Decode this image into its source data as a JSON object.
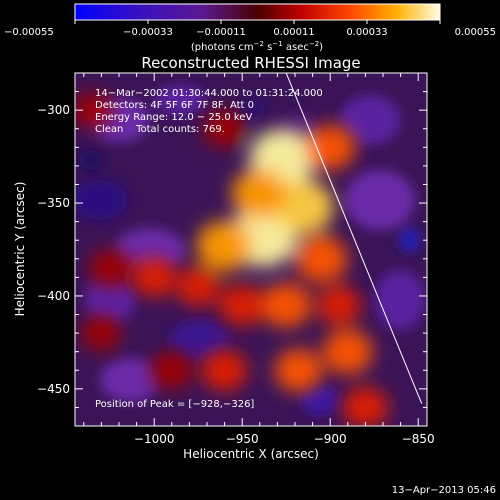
{
  "chart_data": {
    "type": "heatmap",
    "title": "Reconstructed RHESSI Image",
    "xlabel": "Heliocentric X (arcsec)",
    "ylabel": "Heliocentric Y (arcsec)",
    "xlim": [
      -1045,
      -845
    ],
    "ylim": [
      -470,
      -280
    ],
    "x_ticks": [
      -1000,
      -950,
      -900,
      -850
    ],
    "x_tick_labels": [
      "−1000",
      "−950",
      "−900",
      "−850"
    ],
    "y_ticks": [
      -300,
      -350,
      -400,
      -450
    ],
    "y_tick_labels": [
      "−300",
      "−350",
      "−400",
      "−450"
    ],
    "colorbar": {
      "range": [
        -0.00055,
        0.00055
      ],
      "ticks": [
        -0.00055,
        -0.00033,
        -0.00011,
        0.00011,
        0.00033,
        0.00055
      ],
      "tick_labels": [
        "−0.00055",
        "−0.00033",
        "−0.00011",
        "0.00011",
        "0.00033",
        "0.00055"
      ],
      "unit_prefix": "(photons cm",
      "unit_exp1": "−2",
      "unit_mid": " s",
      "unit_exp2": "−1",
      "unit_mid2": " asec",
      "unit_exp3": "−2",
      "unit_suffix": ")"
    },
    "annotations": {
      "time": "14−Mar−2002 01:30:44.000 to 01:31:24.000",
      "detectors": "Detectors: 4F 5F 6F 7F 8F, Att 0",
      "energy": "Energy Range: 12.0 − 25.0 keV",
      "method": "Clean    Total counts: 769.",
      "peak": "Position of Peak = [−928,−326]"
    },
    "limb_line": {
      "x": [
        -925,
        -848
      ],
      "y": [
        -280,
        -458
      ]
    },
    "sources": [
      {
        "x": -938,
        "y": -368,
        "intensity": 1.0
      },
      {
        "x": -927,
        "y": -326,
        "intensity": 0.95
      },
      {
        "x": -960,
        "y": -373,
        "intensity": 0.7
      },
      {
        "x": -915,
        "y": -352,
        "intensity": 0.8
      },
      {
        "x": -940,
        "y": -345,
        "intensity": 0.7
      },
      {
        "x": -905,
        "y": -380,
        "intensity": 0.6
      },
      {
        "x": -925,
        "y": -405,
        "intensity": 0.55
      },
      {
        "x": -950,
        "y": -405,
        "intensity": 0.45
      },
      {
        "x": -918,
        "y": -440,
        "intensity": 0.5
      },
      {
        "x": -975,
        "y": -395,
        "intensity": 0.4
      },
      {
        "x": -1000,
        "y": -390,
        "intensity": 0.4
      },
      {
        "x": -1025,
        "y": -385,
        "intensity": 0.35
      },
      {
        "x": -1030,
        "y": -420,
        "intensity": 0.3
      },
      {
        "x": -1035,
        "y": -300,
        "intensity": 0.3
      },
      {
        "x": -990,
        "y": -440,
        "intensity": 0.35
      },
      {
        "x": -890,
        "y": -430,
        "intensity": 0.55
      },
      {
        "x": -880,
        "y": -460,
        "intensity": 0.45
      },
      {
        "x": -895,
        "y": -405,
        "intensity": 0.4
      },
      {
        "x": -960,
        "y": -440,
        "intensity": 0.45
      },
      {
        "x": -900,
        "y": -320,
        "intensity": 0.55
      },
      {
        "x": -960,
        "y": -310,
        "intensity": 0.35
      }
    ],
    "timestamp": "13−Apr−2013 05:46"
  }
}
